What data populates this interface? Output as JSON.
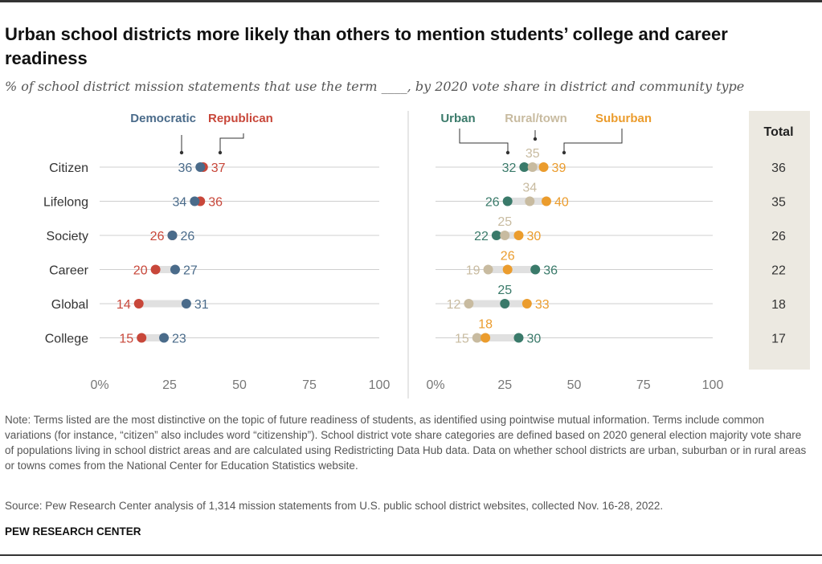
{
  "title": "Urban school districts more likely than others to mention students’ college and career readiness",
  "subtitle": "% of school district mission statements that use the term ____, by 2020 vote share in district and community type",
  "note": "Note: Terms listed are the most distinctive on the topic of future readiness of students, as identified using pointwise mutual information. Terms include common variations (for instance, “citizen” also includes word “citizenship”). School district vote share categories are defined based on 2020 general election majority vote share of populations living in school district areas and are calculated using Redistricting Data Hub data. Data on whether school districts are urban, suburban or in rural areas or towns comes from the National Center for Education Statistics website.",
  "source": "Source: Pew Research Center analysis of 1,314 mission statements from U.S. public school district websites, collected Nov. 16-28, 2022.",
  "brand": "PEW RESEARCH CENTER",
  "colors": {
    "democratic": "#4a6b8a",
    "republican": "#c8473a",
    "urban": "#3a7a6a",
    "rural_town": "#c8bba0",
    "suburban": "#eb9c2d",
    "total_panel": "#ece9e1",
    "grid": "#cfcfcf"
  },
  "chart_data": [
    {
      "type": "dot",
      "panel": "vote_share",
      "categories": [
        "Citizen",
        "Lifelong",
        "Society",
        "Career",
        "Global",
        "College"
      ],
      "series": [
        {
          "name": "Democratic",
          "values": [
            36,
            34,
            26,
            27,
            31,
            23
          ]
        },
        {
          "name": "Republican",
          "values": [
            37,
            36,
            26,
            20,
            14,
            15
          ]
        }
      ],
      "xlim": [
        0,
        100
      ],
      "xticks": [
        "0%",
        "25",
        "50",
        "75",
        "100"
      ]
    },
    {
      "type": "dot",
      "panel": "community_type",
      "categories": [
        "Citizen",
        "Lifelong",
        "Society",
        "Career",
        "Global",
        "College"
      ],
      "series": [
        {
          "name": "Urban",
          "values": [
            32,
            26,
            22,
            36,
            25,
            30
          ]
        },
        {
          "name": "Rural/town",
          "values": [
            35,
            34,
            25,
            19,
            12,
            15
          ]
        },
        {
          "name": "Suburban",
          "values": [
            39,
            40,
            30,
            26,
            33,
            18
          ]
        }
      ],
      "xlim": [
        0,
        100
      ],
      "xticks": [
        "0%",
        "25",
        "50",
        "75",
        "100"
      ]
    },
    {
      "type": "table",
      "header": "Total",
      "categories": [
        "Citizen",
        "Lifelong",
        "Society",
        "Career",
        "Global",
        "College"
      ],
      "values": [
        36,
        35,
        26,
        22,
        18,
        17
      ]
    }
  ]
}
